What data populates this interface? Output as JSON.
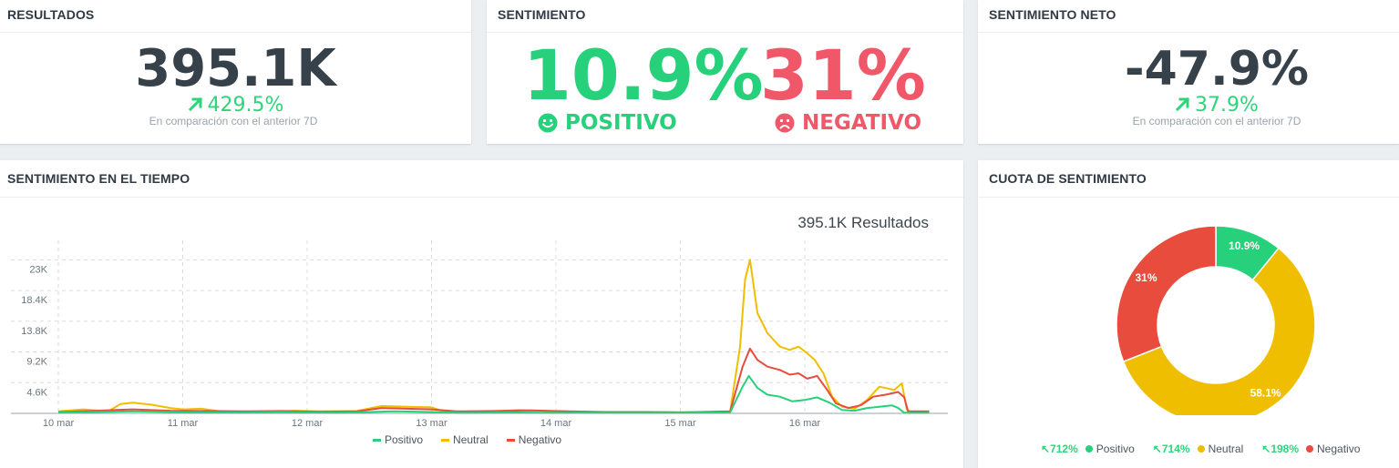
{
  "colors": {
    "positive": "#27d07a",
    "neutral": "#f0be00",
    "negative": "#e74c3c",
    "metric": "#36414a",
    "negative_text": "#f0586a",
    "delta_up": "#2ed47a"
  },
  "resultados": {
    "title": "RESULTADOS",
    "value": "395.1K",
    "delta": "429.5%",
    "delta_icon": "arrow-up-right-icon",
    "comparison": "En comparación con el anterior 7D"
  },
  "sentimiento": {
    "title": "SENTIMIENTO",
    "positive_value": "10.9%",
    "positive_label": "POSITIVO",
    "positive_icon": "smile-icon",
    "negative_value": "31%",
    "negative_label": "NEGATIVO",
    "negative_icon": "frown-icon"
  },
  "sentimiento_neto": {
    "title": "SENTIMIENTO NETO",
    "value": "-47.9%",
    "delta": "37.9%",
    "delta_icon": "arrow-up-right-icon",
    "comparison": "En comparación con el anterior 7D"
  },
  "tiempo": {
    "title": "SENTIMIENTO EN EL TIEMPO",
    "results_label": "395.1K Resultados",
    "legend": [
      "Positivo",
      "Neutral",
      "Negativo"
    ]
  },
  "cuota": {
    "title": "CUOTA DE SENTIMIENTO",
    "legend": [
      {
        "change": "712%",
        "label": "Positivo"
      },
      {
        "change": "714%",
        "label": "Neutral"
      },
      {
        "change": "198%",
        "label": "Negativo"
      }
    ]
  },
  "chart_data": [
    {
      "type": "line",
      "title": "395.1K Resultados",
      "x_labels": [
        "10 mar",
        "11 mar",
        "12 mar",
        "13 mar",
        "14 mar",
        "15 mar",
        "16 mar"
      ],
      "x_range": [
        0,
        7
      ],
      "y_ticks": [
        "4.6K",
        "9.2K",
        "13.8K",
        "18.4K",
        "23K"
      ],
      "ylim": [
        0,
        24000
      ],
      "grid": true,
      "legend_position": "bottom",
      "series": [
        {
          "name": "Positivo",
          "color": "#27d07a",
          "points": [
            [
              0,
              150
            ],
            [
              0.3,
              200
            ],
            [
              0.6,
              300
            ],
            [
              0.9,
              200
            ],
            [
              1.2,
              150
            ],
            [
              1.5,
              150
            ],
            [
              1.8,
              200
            ],
            [
              2.1,
              120
            ],
            [
              2.4,
              150
            ],
            [
              2.7,
              300
            ],
            [
              3.0,
              200
            ],
            [
              3.3,
              100
            ],
            [
              3.6,
              150
            ],
            [
              3.9,
              100
            ],
            [
              4.2,
              120
            ],
            [
              4.5,
              100
            ],
            [
              4.8,
              100
            ],
            [
              5.0,
              100
            ],
            [
              5.4,
              150
            ],
            [
              5.5,
              4000
            ],
            [
              5.55,
              5600
            ],
            [
              5.62,
              3800
            ],
            [
              5.7,
              2800
            ],
            [
              5.8,
              2500
            ],
            [
              5.9,
              1800
            ],
            [
              6.0,
              2000
            ],
            [
              6.1,
              2400
            ],
            [
              6.2,
              1600
            ],
            [
              6.3,
              500
            ],
            [
              6.4,
              400
            ],
            [
              6.5,
              800
            ],
            [
              6.6,
              1000
            ],
            [
              6.7,
              1200
            ],
            [
              6.75,
              800
            ],
            [
              6.8,
              100
            ],
            [
              7.0,
              100
            ]
          ]
        },
        {
          "name": "Neutral",
          "color": "#f0be00",
          "points": [
            [
              0,
              300
            ],
            [
              0.2,
              600
            ],
            [
              0.4,
              300
            ],
            [
              0.5,
              1400
            ],
            [
              0.6,
              1600
            ],
            [
              0.75,
              1300
            ],
            [
              0.9,
              800
            ],
            [
              1.0,
              600
            ],
            [
              1.15,
              700
            ],
            [
              1.3,
              300
            ],
            [
              1.6,
              200
            ],
            [
              1.9,
              400
            ],
            [
              2.1,
              300
            ],
            [
              2.4,
              350
            ],
            [
              2.6,
              1100
            ],
            [
              2.8,
              1000
            ],
            [
              3.0,
              900
            ],
            [
              3.1,
              300
            ],
            [
              3.4,
              200
            ],
            [
              3.7,
              500
            ],
            [
              4.0,
              300
            ],
            [
              4.3,
              200
            ],
            [
              4.6,
              200
            ],
            [
              5.0,
              150
            ],
            [
              5.4,
              250
            ],
            [
              5.48,
              10000
            ],
            [
              5.52,
              20000
            ],
            [
              5.56,
              23000
            ],
            [
              5.62,
              15000
            ],
            [
              5.7,
              12000
            ],
            [
              5.8,
              10000
            ],
            [
              5.88,
              9500
            ],
            [
              5.95,
              10000
            ],
            [
              6.02,
              9000
            ],
            [
              6.08,
              8000
            ],
            [
              6.15,
              6000
            ],
            [
              6.22,
              2500
            ],
            [
              6.3,
              1000
            ],
            [
              6.4,
              700
            ],
            [
              6.5,
              2000
            ],
            [
              6.6,
              4000
            ],
            [
              6.72,
              3500
            ],
            [
              6.78,
              4500
            ],
            [
              6.82,
              600
            ],
            [
              6.85,
              200
            ],
            [
              7.0,
              200
            ]
          ]
        },
        {
          "name": "Negativo",
          "color": "#e74c3c",
          "points": [
            [
              0,
              200
            ],
            [
              0.3,
              400
            ],
            [
              0.6,
              600
            ],
            [
              0.9,
              400
            ],
            [
              1.2,
              350
            ],
            [
              1.5,
              300
            ],
            [
              1.8,
              350
            ],
            [
              2.1,
              250
            ],
            [
              2.4,
              300
            ],
            [
              2.6,
              800
            ],
            [
              2.8,
              700
            ],
            [
              3.0,
              600
            ],
            [
              3.2,
              300
            ],
            [
              3.5,
              350
            ],
            [
              3.8,
              450
            ],
            [
              4.1,
              300
            ],
            [
              4.4,
              200
            ],
            [
              4.7,
              200
            ],
            [
              5.0,
              150
            ],
            [
              5.4,
              300
            ],
            [
              5.5,
              7000
            ],
            [
              5.56,
              9700
            ],
            [
              5.62,
              8000
            ],
            [
              5.7,
              7000
            ],
            [
              5.8,
              6500
            ],
            [
              5.88,
              5800
            ],
            [
              5.95,
              6000
            ],
            [
              6.02,
              5200
            ],
            [
              6.1,
              5600
            ],
            [
              6.18,
              3500
            ],
            [
              6.25,
              1500
            ],
            [
              6.35,
              800
            ],
            [
              6.45,
              1200
            ],
            [
              6.55,
              2500
            ],
            [
              6.65,
              2800
            ],
            [
              6.75,
              3200
            ],
            [
              6.8,
              2400
            ],
            [
              6.83,
              300
            ],
            [
              7.0,
              300
            ]
          ]
        }
      ]
    },
    {
      "type": "pie",
      "title": "",
      "donut": true,
      "slices": [
        {
          "label": "Positivo",
          "value": 10.9,
          "text": "10.9%",
          "color": "#27d07a"
        },
        {
          "label": "Neutral",
          "value": 58.1,
          "text": "58.1%",
          "color": "#f0be00"
        },
        {
          "label": "Negativo",
          "value": 31,
          "text": "31%",
          "color": "#e74c3c"
        }
      ],
      "legend_position": "bottom"
    }
  ]
}
